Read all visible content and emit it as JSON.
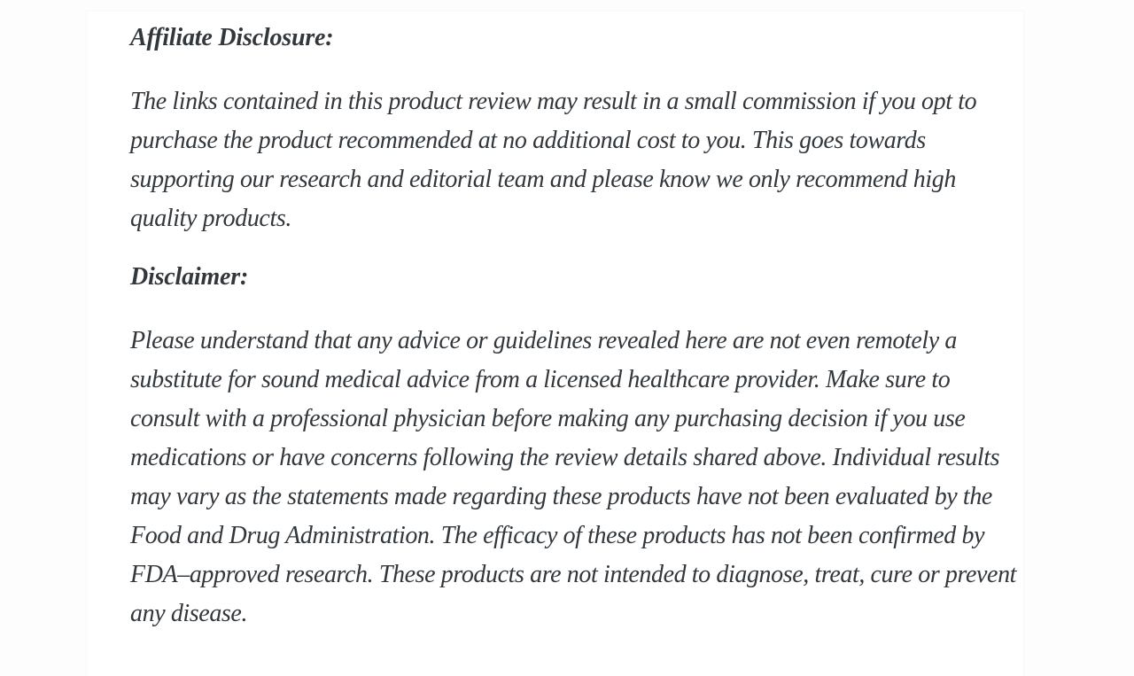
{
  "page": {
    "colors": {
      "outer_background": "#fdfdfd",
      "card_background": "#ffffff",
      "text": "#32373c"
    }
  },
  "article": {
    "sections": [
      {
        "heading": "Affiliate Disclosure:",
        "body": "The links contained in this product review may result in a small commission if you opt to purchase the product recommended at no additional cost to you. This goes towards supporting our research and editorial team and please know we only recommend high quality products."
      },
      {
        "heading": "Disclaimer:",
        "body": "Please understand that any advice or guidelines revealed here are not even remotely a substitute for sound medical advice from a licensed healthcare provider. Make sure to consult with a professional physician before making any purchasing decision if you use medications or have concerns following the review details shared above. Individual results may vary as the statements made regarding these products have not been evaluated by the Food and Drug Administration. The efficacy of these products has not been confirmed by FDA–approved research. These products are not intended to diagnose, treat, cure or prevent any disease."
      }
    ]
  }
}
